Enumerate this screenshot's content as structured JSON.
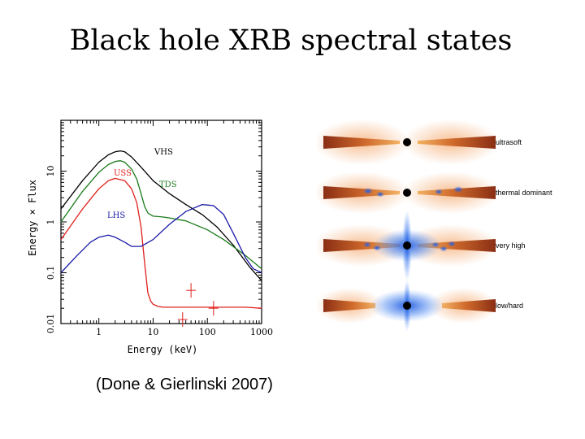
{
  "slide": {
    "title": "Black hole XRB spectral states",
    "citation": "(Done & Gierlinski 2007)"
  },
  "colors": {
    "VHS": "#000000",
    "USS": "#e0201c",
    "TDS": "#1a7a1a",
    "LHS": "#1a1aa8",
    "disk_outer": "#b0481c",
    "disk_inner": "#f0a64e",
    "corona": "#2a6ee8"
  },
  "chart_data": {
    "type": "line",
    "xlabel": "Energy (keV)",
    "ylabel": "Energy × Flux",
    "xscale": "log",
    "yscale": "log",
    "xlim": [
      0.2,
      1000
    ],
    "ylim": [
      0.01,
      100
    ],
    "xticks": [
      1,
      10,
      100,
      1000
    ],
    "xtick_labels": [
      "1",
      "10",
      "100",
      "1000"
    ],
    "yticks": [
      0.01,
      0.1,
      1,
      10
    ],
    "ytick_labels": [
      "0.01",
      "0.1",
      "1",
      "10"
    ],
    "series": [
      {
        "name": "VHS",
        "color": "#000000",
        "x": [
          0.2,
          0.5,
          1,
          1.5,
          2,
          2.5,
          3,
          4,
          6,
          10,
          20,
          40,
          80,
          150,
          300,
          600,
          1000
        ],
        "y": [
          1.8,
          6.5,
          15,
          21,
          24,
          25,
          24,
          19,
          12,
          6.5,
          3.6,
          2.2,
          1.4,
          0.8,
          0.35,
          0.13,
          0.07
        ]
      },
      {
        "name": "USS",
        "color": "#e0201c",
        "x": [
          0.2,
          0.5,
          1,
          1.5,
          2,
          3,
          4,
          5,
          6,
          7,
          8,
          9,
          10,
          12,
          15,
          20,
          40,
          100,
          200,
          500,
          1000
        ],
        "y": [
          0.45,
          1.8,
          4.5,
          6.5,
          7.2,
          6.5,
          4.5,
          2.4,
          0.8,
          0.15,
          0.04,
          0.028,
          0.024,
          0.022,
          0.021,
          0.021,
          0.021,
          0.021,
          0.021,
          0.021,
          0.02
        ]
      },
      {
        "name": "TDS",
        "color": "#1a7a1a",
        "x": [
          0.2,
          0.5,
          1,
          1.5,
          2,
          2.5,
          3,
          4,
          5,
          6,
          7,
          8,
          10,
          15,
          20,
          40,
          100,
          200,
          500,
          1000
        ],
        "y": [
          1.0,
          4.0,
          9.5,
          13.5,
          15.5,
          16,
          15,
          11,
          7,
          3.6,
          2.0,
          1.5,
          1.3,
          1.25,
          1.2,
          1.05,
          0.7,
          0.45,
          0.22,
          0.12
        ]
      },
      {
        "name": "LHS",
        "color": "#1a1aa8",
        "x": [
          0.2,
          0.4,
          0.7,
          1,
          1.5,
          2,
          3,
          4,
          6,
          10,
          20,
          40,
          80,
          130,
          200,
          300,
          500,
          700,
          1000
        ],
        "y": [
          0.1,
          0.22,
          0.4,
          0.5,
          0.55,
          0.5,
          0.4,
          0.33,
          0.33,
          0.45,
          0.9,
          1.6,
          2.2,
          2.1,
          1.4,
          0.6,
          0.2,
          0.12,
          0.1
        ]
      }
    ],
    "series_labels": [
      "VHS",
      "USS",
      "TDS",
      "LHS"
    ],
    "data_points": [
      {
        "x": 50,
        "y": 0.045
      },
      {
        "x": 35,
        "y": 0.012
      },
      {
        "x": 130,
        "y": 0.02
      }
    ]
  },
  "diagram": {
    "panels": [
      {
        "label": "ultrasoft"
      },
      {
        "label": "thermal dominant"
      },
      {
        "label": "very high"
      },
      {
        "label": "low/hard"
      }
    ]
  }
}
